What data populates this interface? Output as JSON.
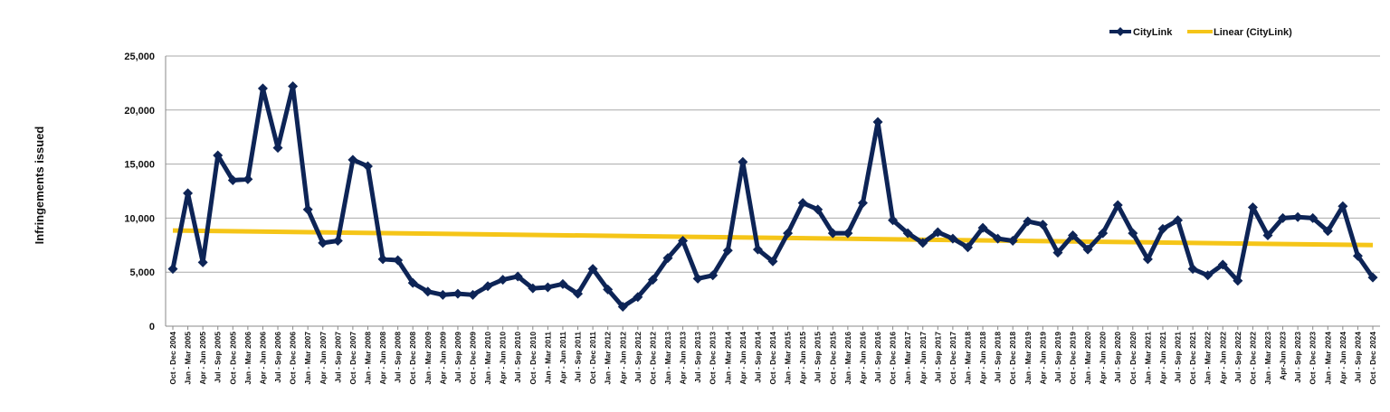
{
  "chart_data": {
    "type": "line",
    "title": "",
    "xlabel": "",
    "ylabel": "Infringements issued",
    "ylim": [
      0,
      25000
    ],
    "yticks": [
      0,
      5000,
      10000,
      15000,
      20000,
      25000
    ],
    "ytick_labels": [
      "0",
      "5,000",
      "10,000",
      "15,000",
      "20,000",
      "25,000"
    ],
    "grid": true,
    "legend_position": "top-right",
    "categories": [
      "Oct - Dec 2004",
      "Jan - Mar 2005",
      "Apr - Jun 2005",
      "Jul - Sep 2005",
      "Oct - Dec 2005",
      "Jan - Mar 2006",
      "Apr - Jun 2006",
      "Jul - Sep 2006",
      "Oct - Dec 2006",
      "Jan - Mar 2007",
      "Apr - Jun 2007",
      "Jul - Sep 2007",
      "Oct - Dec 2007",
      "Jan - Mar 2008",
      "Apr - Jun 2008",
      "Jul - Sep 2008",
      "Oct - Dec 2008",
      "Jan - Mar 2009",
      "Apr - Jun 2009",
      "Jul - Sep 2009",
      "Oct - Dec 2009",
      "Jan - Mar 2010",
      "Apr - Jun 2010",
      "Jul - Sep 2010",
      "Oct - Dec 2010",
      "Jan - Mar 2011",
      "Apr - Jun 2011",
      "Jul - Sep 2011",
      "Oct - Dec 2011",
      "Jan - Mar 2012",
      "Apr - Jun 2012",
      "Jul - Sep 2012",
      "Oct - Dec 2012",
      "Jan - Mar 2013",
      "Apr - Jun 2013",
      "Jul - Sep 2013",
      "Oct - Dec 2013",
      "Jan - Mar 2014",
      "Apr - Jun 2014",
      "Jul - Sep 2014",
      "Oct - Dec 2014",
      "Jan - Mar 2015",
      "Apr - Jun 2015",
      "Jul - Sep 2015",
      "Oct - Dec 2015",
      "Jan - Mar 2016",
      "Apr - Jun 2016",
      "Jul - Sep 2016",
      "Oct - Dec 2016",
      "Jan - Mar 2017",
      "Apr - Jun 2017",
      "Jul - Sep 2017",
      "Oct - Dec 2017",
      "Jan - Mar 2018",
      "Apr - Jun 2018",
      "Jul - Sep 2018",
      "Oct - Dec 2018",
      "Jan - Mar 2019",
      "Apr - Jun 2019",
      "Jul - Sep 2019",
      "Oct - Dec 2019",
      "Jan - Mar 2020",
      "Apr - Jun 2020",
      "Jul - Sep 2020",
      "Oct - Dec 2020",
      "Jan - Mar 2021",
      "Apr - Jun 2021",
      "Jul - Sep 2021",
      "Oct - Dec 2021",
      "Jan - Mar 2022",
      "Apr - Jun 2022",
      "Jul - Sep 2022",
      "Oct - Dec 2022",
      "Jan - Mar 2023",
      "Apr-Jun 2023",
      "Jul - Sep 2023",
      "Oct - Dec 2023",
      "Jan - Mar 2024",
      "Apr - Jun 2024",
      "Jul - Sep 2024",
      "Oct - Dec 2024"
    ],
    "series": [
      {
        "name": "CityLink",
        "color": "#0d2456",
        "marker": "diamond",
        "values": [
          5300,
          12300,
          5900,
          15800,
          13500,
          13600,
          22000,
          16500,
          22200,
          10800,
          7700,
          7900,
          15400,
          14800,
          6200,
          6100,
          4000,
          3200,
          2900,
          3000,
          2900,
          3700,
          4300,
          4600,
          3500,
          3600,
          3900,
          3000,
          5300,
          3400,
          1800,
          2700,
          4300,
          6300,
          7900,
          4400,
          4700,
          7000,
          15200,
          7100,
          6000,
          8600,
          11400,
          10800,
          8600,
          8600,
          11400,
          18900,
          9800,
          8600,
          7700,
          8700,
          8100,
          7300,
          9100,
          8100,
          7900,
          9700,
          9400,
          6800,
          8400,
          7100,
          8600,
          11200,
          8600,
          6200,
          9000,
          9800,
          5300,
          4700,
          5700,
          4200,
          11000,
          8400,
          10000,
          10100,
          10000,
          8800,
          11100,
          6500,
          4500
        ]
      },
      {
        "name": "Linear (CityLink)",
        "color": "#f5c518",
        "type": "trendline",
        "start": 8850,
        "end": 7500
      }
    ]
  }
}
